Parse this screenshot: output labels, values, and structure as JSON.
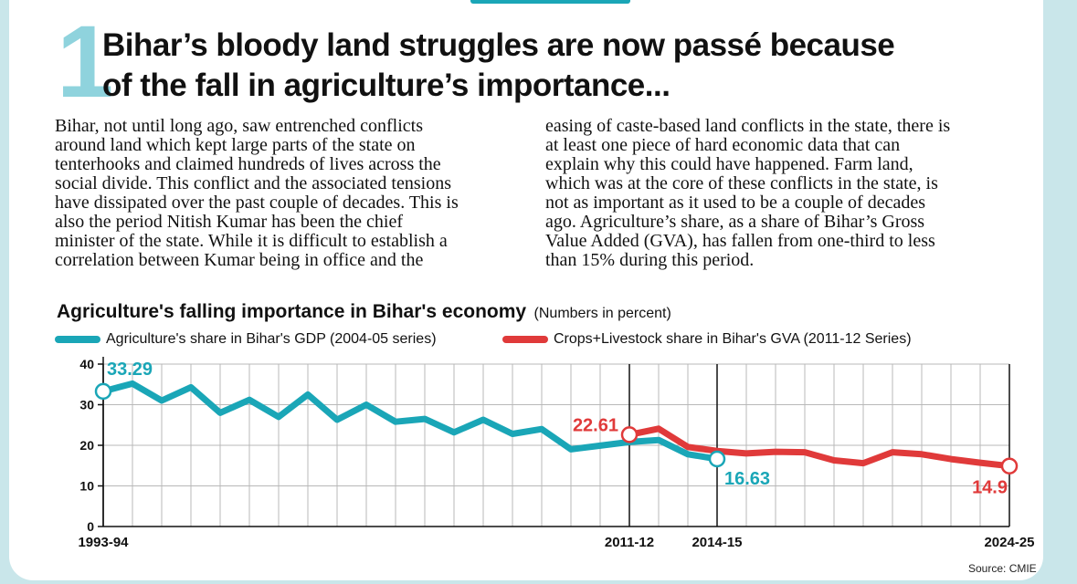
{
  "article": {
    "number": "1",
    "headline_line1": "Bihar’s bloody land struggles are now passé because",
    "headline_line2": "of the fall in agriculture’s importance...",
    "left_column": [
      "Bihar, not until long ago, saw entrenched conflicts",
      "around land which kept large parts of the state on",
      "tenterhooks and claimed hundreds of lives across the",
      "social divide. This conflict and the associated tensions",
      "have dissipated over the past couple of decades. This is",
      "also the period Nitish Kumar has been the chief",
      "minister of the state. While it is difficult to establish a",
      "correlation between Kumar being in office and the"
    ],
    "right_column": [
      "easing of caste-based land conflicts in the state, there is",
      "at least one piece of hard economic data that can",
      "explain why this could have happened. Farm land,",
      "which was at the core of these conflicts in the state, is",
      "not as important as it used to be a couple of decades",
      "ago. Agriculture’s share, as a share of Bihar’s Gross",
      "Value Added (GVA), has fallen from one-third to less",
      "than 15% during this period."
    ]
  },
  "colors": {
    "series1": "#1aa6b7",
    "series2": "#e03a3a",
    "accent_number": "#8fd3dd",
    "grid": "#b8b8b8",
    "background": "#c9e6ea"
  },
  "chart_data": {
    "type": "line",
    "title": "Agriculture's falling importance in Bihar's economy",
    "unit_note": "(Numbers in percent)",
    "xlabel": "",
    "ylabel": "",
    "ylim": [
      0,
      40
    ],
    "yticks": [
      "0",
      "10",
      "20",
      "30",
      "40"
    ],
    "x_range": [
      0,
      31
    ],
    "x_tick_labels": [
      {
        "index": 0,
        "label": "1993-94"
      },
      {
        "index": 18,
        "label": "2011-12"
      },
      {
        "index": 21,
        "label": "2014-15"
      },
      {
        "index": 31,
        "label": "2024-25"
      }
    ],
    "grid": true,
    "legend_position": "top-left",
    "series": [
      {
        "name": "Agriculture's share in Bihar's GDP (2004-05 series)",
        "color": "#1aa6b7",
        "x": [
          0,
          1,
          2,
          3,
          4,
          5,
          6,
          7,
          8,
          9,
          10,
          11,
          12,
          13,
          14,
          15,
          16,
          17,
          18,
          19,
          20,
          21
        ],
        "values": [
          33.29,
          35.2,
          31.0,
          34.3,
          28.0,
          31.2,
          27.0,
          32.5,
          26.3,
          30.0,
          25.8,
          26.5,
          23.2,
          26.3,
          22.8,
          24.0,
          19.0,
          19.9,
          20.8,
          21.3,
          17.8,
          16.63
        ],
        "start_label": "33.29",
        "end_label": "16.63"
      },
      {
        "name": "Crops+Livestock share in Bihar's GVA (2011-12 Series)",
        "color": "#e03a3a",
        "x": [
          18,
          19,
          20,
          21,
          22,
          23,
          24,
          25,
          26,
          27,
          28,
          29,
          30,
          31
        ],
        "values": [
          22.61,
          24.1,
          19.6,
          18.6,
          18.0,
          18.4,
          18.3,
          16.3,
          15.6,
          18.3,
          17.8,
          16.6,
          15.7,
          14.9
        ],
        "start_label": "22.61",
        "end_label": "14.9"
      }
    ],
    "source": "Source: CMIE"
  }
}
